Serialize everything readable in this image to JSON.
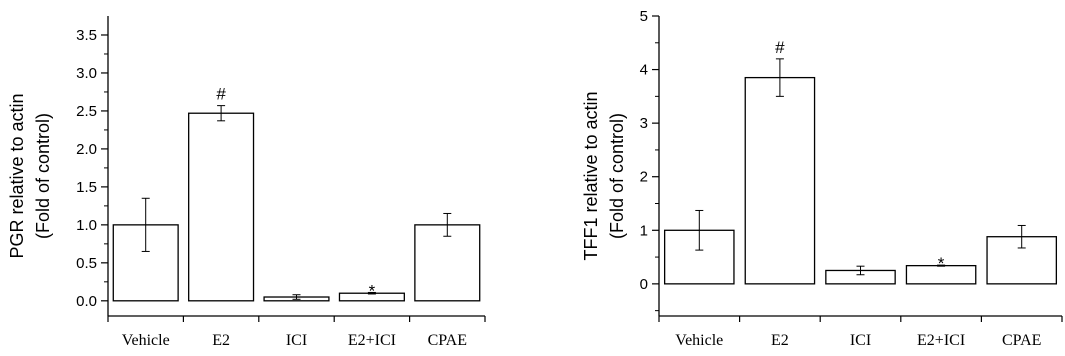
{
  "chart_data": [
    {
      "type": "bar",
      "categories": [
        "Vehicle",
        "E2",
        "ICI",
        "E2+ICI",
        "CPAE"
      ],
      "values": [
        1.0,
        2.47,
        0.05,
        0.1,
        1.0
      ],
      "errors": [
        0.35,
        0.1,
        0.03,
        0.01,
        0.15
      ],
      "annotations": [
        "",
        "#",
        "",
        "*",
        ""
      ],
      "ylabel_lines": [
        "PGR relative to actin",
        "(Fold of control)"
      ],
      "xlabel": "",
      "ylim": [
        -0.2,
        3.75
      ],
      "yticks": [
        0.0,
        0.5,
        1.0,
        1.5,
        2.0,
        2.5,
        3.0,
        3.5
      ],
      "ytick_labels": [
        "0.0",
        "0.5",
        "1.0",
        "1.5",
        "2.0",
        "2.5",
        "3.0",
        "3.5"
      ],
      "bar_fill": "#ffffff",
      "bar_stroke": "#000000",
      "grid": false
    },
    {
      "type": "bar",
      "categories": [
        "Vehicle",
        "E2",
        "ICI",
        "E2+ICI",
        "CPAE"
      ],
      "values": [
        1.0,
        3.85,
        0.25,
        0.34,
        0.88
      ],
      "errors": [
        0.37,
        0.35,
        0.08,
        0.01,
        0.21
      ],
      "annotations": [
        "",
        "#",
        "",
        "*",
        ""
      ],
      "ylabel_lines": [
        "TFF1 relative to actin",
        "(Fold of control)"
      ],
      "xlabel": "",
      "ylim": [
        -0.6,
        5.0
      ],
      "yticks": [
        0,
        1,
        2,
        3,
        4,
        5
      ],
      "ytick_labels": [
        "0",
        "1",
        "2",
        "3",
        "4",
        "5"
      ],
      "bar_fill": "#ffffff",
      "bar_stroke": "#000000",
      "grid": false
    }
  ]
}
